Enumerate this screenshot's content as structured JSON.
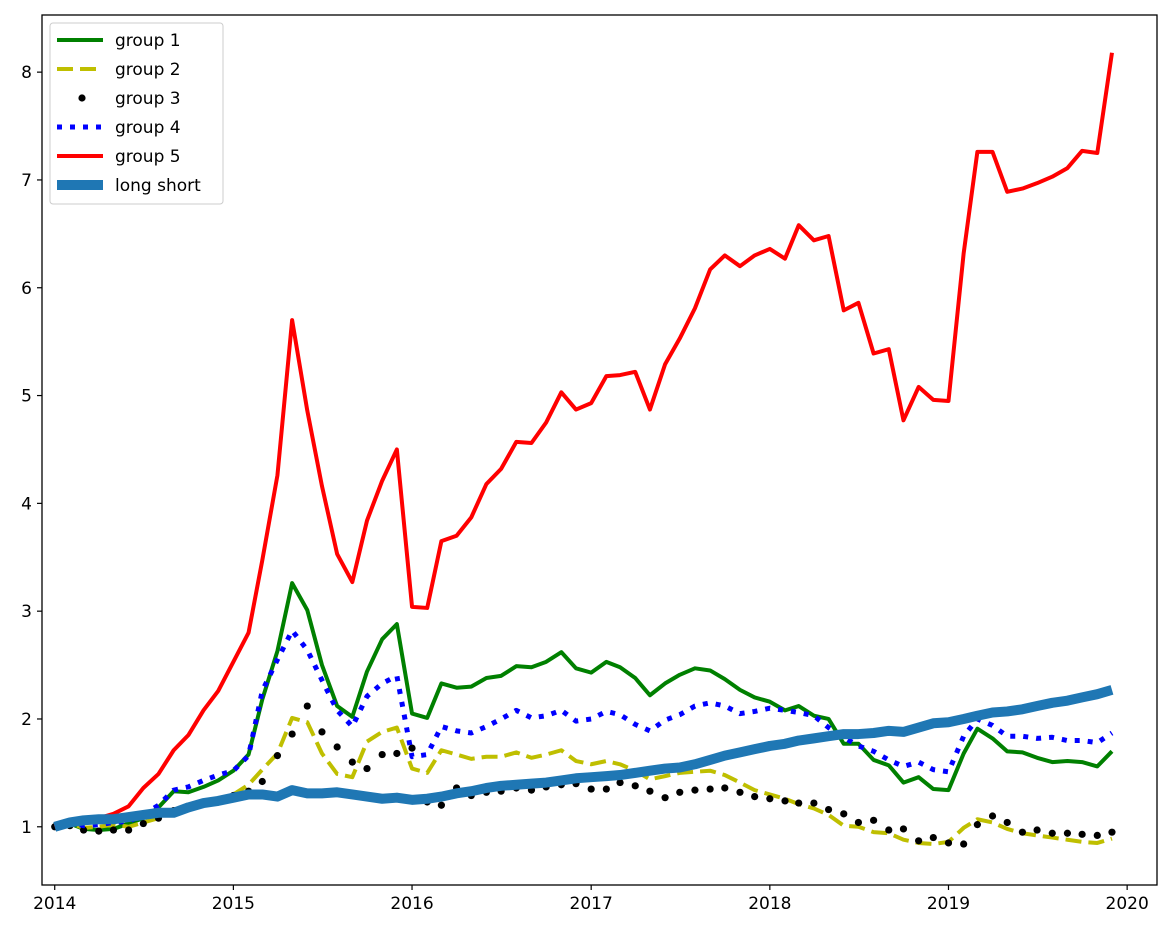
{
  "chart_data": {
    "type": "line",
    "title": "",
    "xlabel": "",
    "ylabel": "",
    "xlim": [
      "2013-12-06",
      "2020-03-02"
    ],
    "ylim": [
      0.46,
      8.53
    ],
    "x_ticks": [
      "2014",
      "2015",
      "2016",
      "2017",
      "2018",
      "2019",
      "2020"
    ],
    "y_ticks": [
      "1",
      "2",
      "3",
      "4",
      "5",
      "6",
      "7",
      "8"
    ],
    "grid": false,
    "legend_position": "upper-left",
    "x": [
      "2014-01",
      "2014-02",
      "2014-03",
      "2014-04",
      "2014-05",
      "2014-06",
      "2014-07",
      "2014-08",
      "2014-09",
      "2014-10",
      "2014-11",
      "2014-12",
      "2015-01",
      "2015-02",
      "2015-03",
      "2015-04",
      "2015-05",
      "2015-06",
      "2015-07",
      "2015-08",
      "2015-09",
      "2015-10",
      "2015-11",
      "2015-12",
      "2016-01",
      "2016-02",
      "2016-03",
      "2016-04",
      "2016-05",
      "2016-06",
      "2016-07",
      "2016-08",
      "2016-09",
      "2016-10",
      "2016-11",
      "2016-12",
      "2017-01",
      "2017-02",
      "2017-03",
      "2017-04",
      "2017-05",
      "2017-06",
      "2017-07",
      "2017-08",
      "2017-09",
      "2017-10",
      "2017-11",
      "2017-12",
      "2018-01",
      "2018-02",
      "2018-03",
      "2018-04",
      "2018-05",
      "2018-06",
      "2018-07",
      "2018-08",
      "2018-09",
      "2018-10",
      "2018-11",
      "2018-12",
      "2019-01",
      "2019-02",
      "2019-03",
      "2019-04",
      "2019-05",
      "2019-06",
      "2019-07",
      "2019-08",
      "2019-09",
      "2019-10",
      "2019-11",
      "2019-12"
    ],
    "series": [
      {
        "name": "group 1",
        "color": "#008000",
        "style": "solid",
        "values": [
          1.0,
          1.03,
          0.98,
          0.97,
          0.98,
          1.03,
          1.08,
          1.18,
          1.33,
          1.32,
          1.37,
          1.43,
          1.52,
          1.67,
          2.18,
          2.63,
          3.26,
          3.01,
          2.5,
          2.12,
          2.02,
          2.44,
          2.74,
          2.88,
          2.05,
          2.01,
          2.33,
          2.29,
          2.3,
          2.38,
          2.4,
          2.49,
          2.48,
          2.53,
          2.62,
          2.47,
          2.43,
          2.53,
          2.48,
          2.38,
          2.22,
          2.33,
          2.41,
          2.47,
          2.45,
          2.37,
          2.27,
          2.2,
          2.16,
          2.08,
          2.12,
          2.03,
          2.0,
          1.77,
          1.77,
          1.62,
          1.57,
          1.41,
          1.46,
          1.35,
          1.34,
          1.68,
          1.91,
          1.82,
          1.7,
          1.69,
          1.64,
          1.6,
          1.61,
          1.6,
          1.56,
          1.7
        ]
      },
      {
        "name": "group 2",
        "color": "#bfbf00",
        "style": "dashed",
        "values": [
          1.0,
          1.03,
          0.99,
          1.0,
          1.02,
          1.0,
          1.04,
          1.08,
          1.14,
          1.17,
          1.2,
          1.25,
          1.3,
          1.39,
          1.53,
          1.68,
          2.01,
          1.97,
          1.68,
          1.49,
          1.46,
          1.79,
          1.88,
          1.92,
          1.54,
          1.5,
          1.71,
          1.67,
          1.63,
          1.65,
          1.65,
          1.69,
          1.64,
          1.67,
          1.71,
          1.61,
          1.58,
          1.61,
          1.58,
          1.52,
          1.44,
          1.47,
          1.5,
          1.51,
          1.52,
          1.48,
          1.41,
          1.34,
          1.3,
          1.26,
          1.21,
          1.17,
          1.11,
          1.01,
          1.0,
          0.95,
          0.94,
          0.88,
          0.85,
          0.84,
          0.86,
          0.99,
          1.07,
          1.04,
          0.98,
          0.94,
          0.92,
          0.9,
          0.88,
          0.86,
          0.85,
          0.89
        ]
      },
      {
        "name": "group 3",
        "color": "#000000",
        "style": "dotted",
        "values": [
          1.0,
          1.01,
          0.97,
          0.96,
          0.97,
          0.97,
          1.03,
          1.08,
          1.15,
          1.18,
          1.21,
          1.25,
          1.29,
          1.33,
          1.42,
          1.66,
          1.86,
          2.12,
          1.88,
          1.74,
          1.6,
          1.54,
          1.67,
          1.68,
          1.73,
          1.23,
          1.2,
          1.36,
          1.29,
          1.32,
          1.33,
          1.36,
          1.34,
          1.37,
          1.39,
          1.4,
          1.35,
          1.35,
          1.41,
          1.38,
          1.33,
          1.27,
          1.32,
          1.34,
          1.35,
          1.36,
          1.32,
          1.28,
          1.26,
          1.24,
          1.22,
          1.22,
          1.16,
          1.12,
          1.04,
          1.06,
          0.97,
          0.98,
          0.87,
          0.9,
          0.85,
          0.84,
          1.02,
          1.1,
          1.04,
          0.95,
          0.97,
          0.94,
          0.94,
          0.93,
          0.92,
          0.95
        ]
      },
      {
        "name": "group 4",
        "color": "#0000ff",
        "style": "dotted-thick",
        "values": [
          1.0,
          1.04,
          1.01,
          1.02,
          1.04,
          1.05,
          1.11,
          1.2,
          1.34,
          1.37,
          1.43,
          1.48,
          1.52,
          1.66,
          2.26,
          2.55,
          2.82,
          2.64,
          2.36,
          2.08,
          1.93,
          2.21,
          2.33,
          2.4,
          1.65,
          1.67,
          1.93,
          1.89,
          1.87,
          1.93,
          2.0,
          2.08,
          2.01,
          2.03,
          2.08,
          1.98,
          2.0,
          2.07,
          2.04,
          1.95,
          1.89,
          1.99,
          2.04,
          2.12,
          2.15,
          2.12,
          2.05,
          2.07,
          2.1,
          2.08,
          2.06,
          2.03,
          1.92,
          1.83,
          1.75,
          1.7,
          1.62,
          1.56,
          1.6,
          1.53,
          1.51,
          1.84,
          2.0,
          1.94,
          1.84,
          1.84,
          1.82,
          1.83,
          1.8,
          1.8,
          1.78,
          1.87
        ]
      },
      {
        "name": "group 5",
        "color": "#ff0000",
        "style": "solid",
        "values": [
          1.0,
          1.06,
          1.06,
          1.08,
          1.12,
          1.19,
          1.36,
          1.49,
          1.71,
          1.85,
          2.08,
          2.26,
          2.53,
          2.8,
          3.47,
          4.26,
          5.7,
          4.86,
          4.16,
          3.53,
          3.27,
          3.84,
          4.21,
          4.5,
          3.04,
          3.03,
          3.65,
          3.7,
          3.87,
          4.18,
          4.32,
          4.57,
          4.56,
          4.75,
          5.03,
          4.87,
          4.93,
          5.18,
          5.19,
          5.22,
          4.87,
          5.29,
          5.53,
          5.81,
          6.17,
          6.3,
          6.2,
          6.3,
          6.36,
          6.27,
          6.58,
          6.44,
          6.48,
          5.79,
          5.86,
          5.39,
          5.43,
          4.77,
          5.08,
          4.96,
          4.95,
          6.32,
          7.26,
          7.26,
          6.89,
          6.92,
          6.97,
          7.03,
          7.11,
          7.27,
          7.25,
          8.18
        ]
      },
      {
        "name": "long short",
        "color": "#1f77b4",
        "style": "solid-thick",
        "values": [
          1.0,
          1.04,
          1.06,
          1.07,
          1.07,
          1.09,
          1.11,
          1.13,
          1.13,
          1.18,
          1.22,
          1.24,
          1.27,
          1.3,
          1.3,
          1.28,
          1.34,
          1.31,
          1.31,
          1.32,
          1.3,
          1.28,
          1.26,
          1.27,
          1.25,
          1.26,
          1.28,
          1.31,
          1.33,
          1.36,
          1.38,
          1.39,
          1.4,
          1.41,
          1.43,
          1.45,
          1.46,
          1.47,
          1.48,
          1.5,
          1.52,
          1.54,
          1.55,
          1.58,
          1.62,
          1.66,
          1.69,
          1.72,
          1.75,
          1.77,
          1.8,
          1.82,
          1.84,
          1.86,
          1.86,
          1.87,
          1.89,
          1.88,
          1.92,
          1.96,
          1.97,
          2.0,
          2.03,
          2.06,
          2.07,
          2.09,
          2.12,
          2.15,
          2.17,
          2.2,
          2.23,
          2.27
        ]
      }
    ]
  }
}
